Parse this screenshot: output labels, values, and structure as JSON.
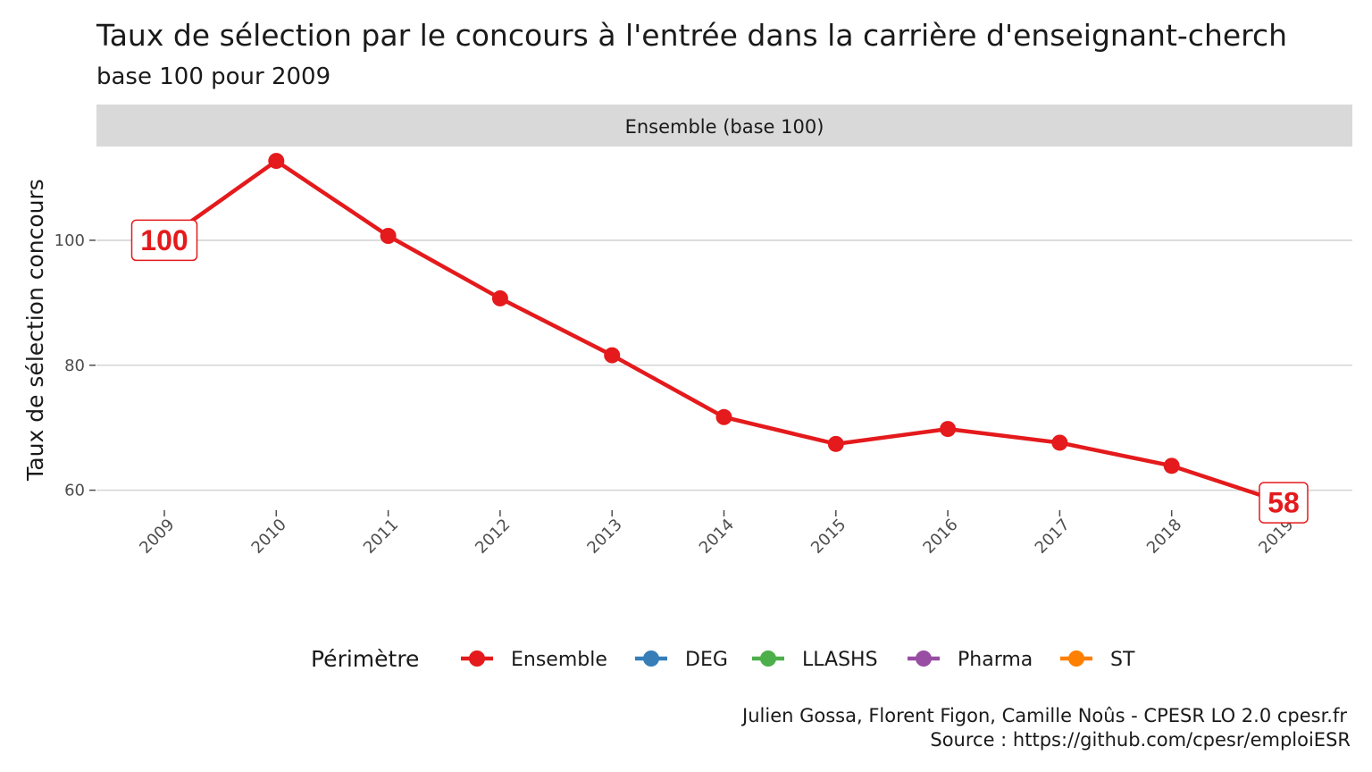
{
  "chart_data": {
    "type": "line",
    "title": "Taux de sélection par le concours à l'entrée dans la carrière d'enseignant-cherch",
    "subtitle": "base 100 pour 2009",
    "facet": "Ensemble (base 100)",
    "ylabel": "Taux de sélection concours",
    "xlabel": "",
    "x": [
      "2009",
      "2010",
      "2011",
      "2012",
      "2013",
      "2014",
      "2015",
      "2016",
      "2017",
      "2018",
      "2019"
    ],
    "yticks": [
      60,
      80,
      100
    ],
    "ylim": [
      57.8,
      115
    ],
    "grid": true,
    "series": [
      {
        "name": "Ensemble",
        "color": "#e41a1c",
        "values": [
          100,
          112.7,
          100.7,
          90.7,
          81.6,
          71.7,
          67.4,
          69.8,
          67.6,
          63.9,
          58
        ]
      }
    ],
    "data_labels": [
      {
        "text": "100",
        "index": 0
      },
      {
        "text": "58",
        "index": 10
      }
    ],
    "legend": {
      "position": "bottom",
      "title": "Périmètre",
      "items": [
        {
          "name": "Ensemble",
          "color": "#e41a1c"
        },
        {
          "name": "DEG",
          "color": "#377eb8"
        },
        {
          "name": "LLASHS",
          "color": "#4daf4a"
        },
        {
          "name": "Pharma",
          "color": "#984ea3"
        },
        {
          "name": "ST",
          "color": "#ff7f00"
        }
      ]
    },
    "caption": [
      "Julien Gossa, Florent Figon, Camille Noûs - CPESR LO 2.0 cpesr.fr",
      "Source : https://github.com/cpesr/emploiESR"
    ]
  }
}
